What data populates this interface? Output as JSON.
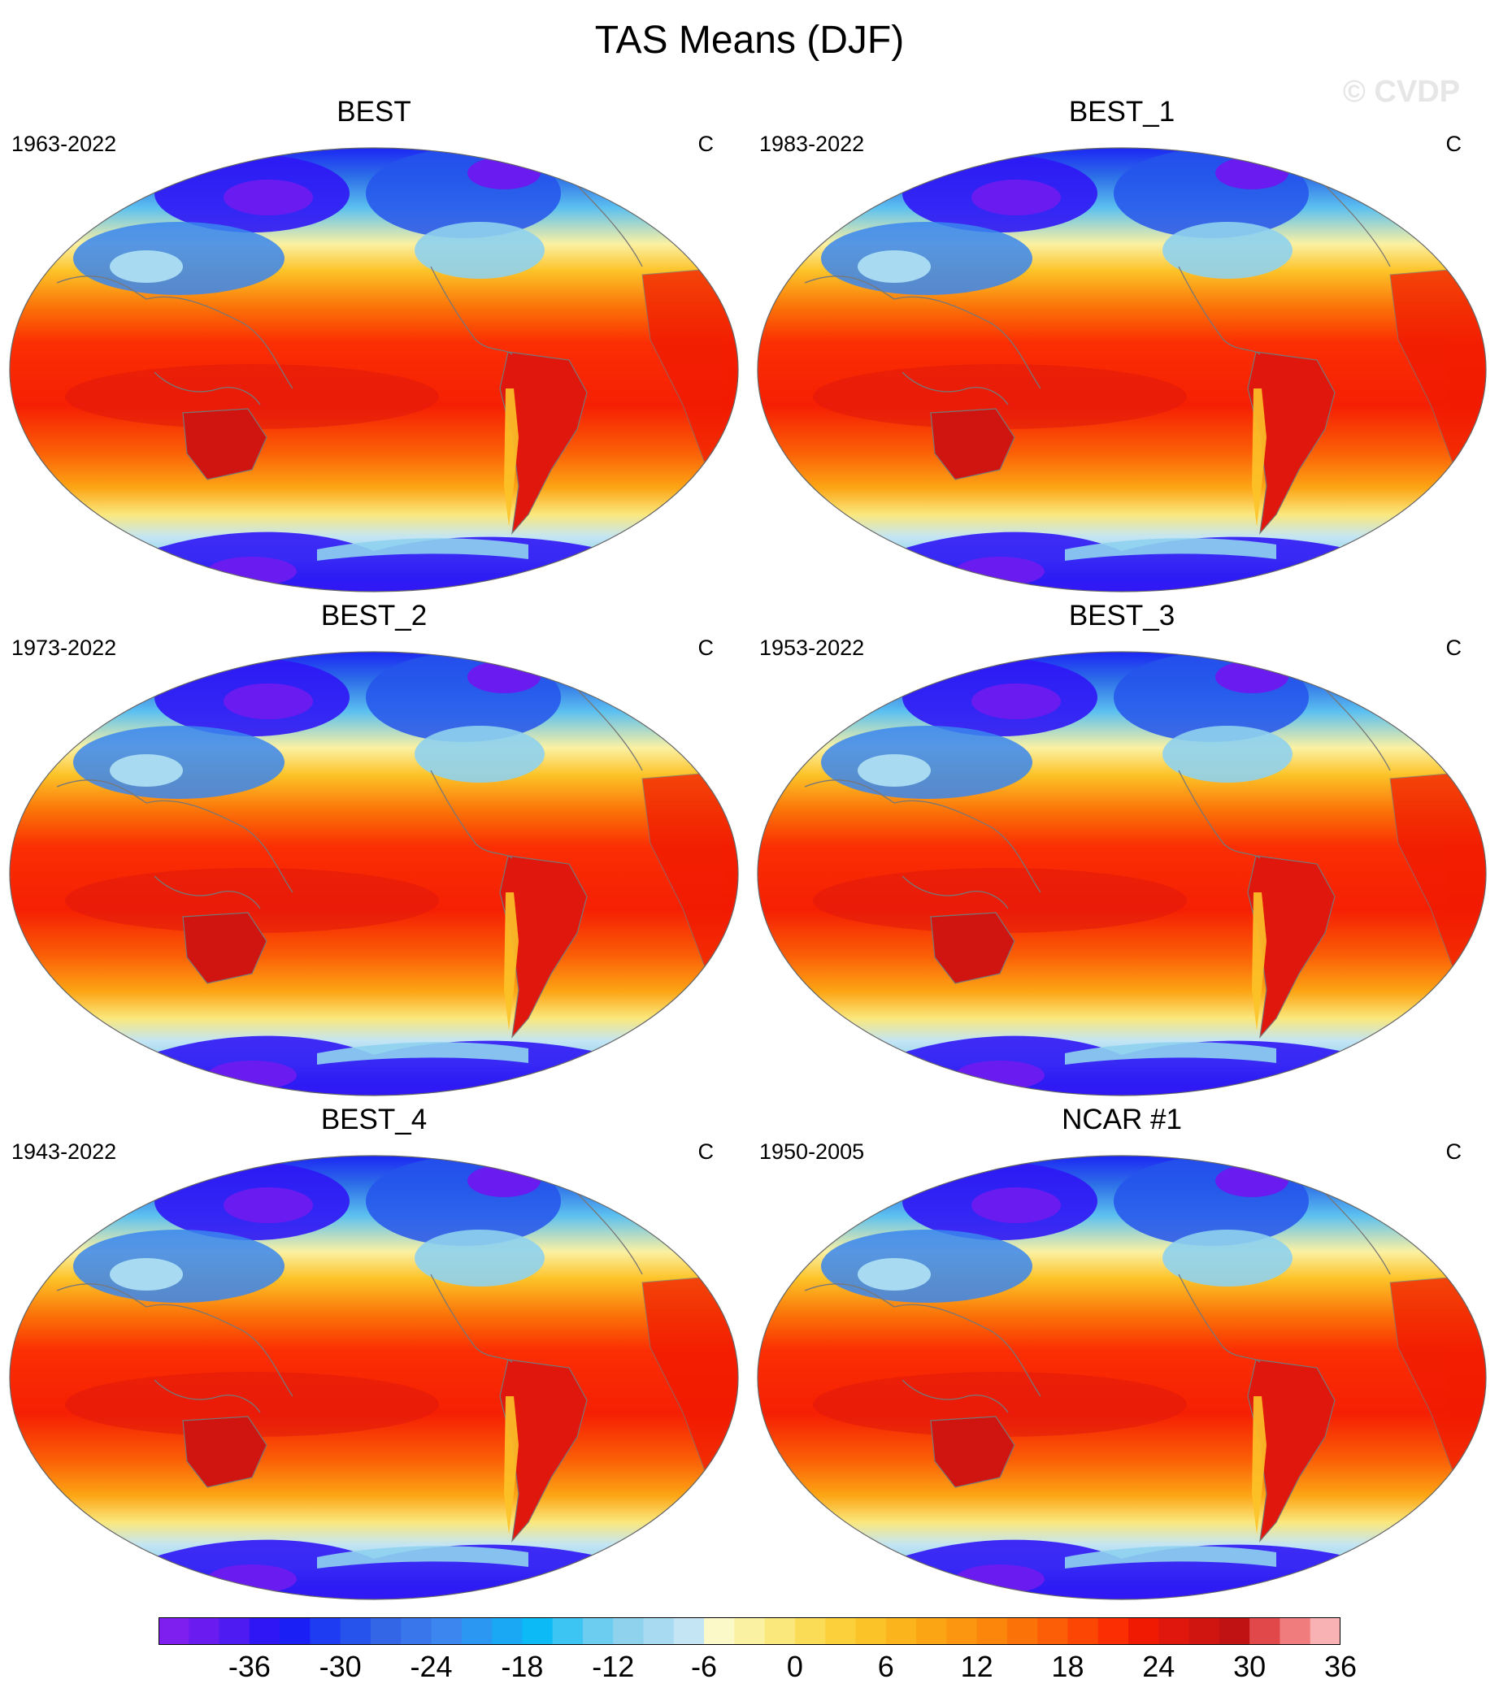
{
  "title": "TAS Means (DJF)",
  "watermark": "© CVDP",
  "panels": [
    {
      "name": "BEST",
      "period": "1963-2022",
      "units": "C"
    },
    {
      "name": "BEST_1",
      "period": "1983-2022",
      "units": "C"
    },
    {
      "name": "BEST_2",
      "period": "1973-2022",
      "units": "C"
    },
    {
      "name": "BEST_3",
      "period": "1953-2022",
      "units": "C"
    },
    {
      "name": "BEST_4",
      "period": "1943-2022",
      "units": "C"
    },
    {
      "name": "NCAR #1",
      "period": "1950-2005",
      "units": "C"
    }
  ],
  "colorbar": {
    "colors": [
      "#7f1fef",
      "#6a1cf0",
      "#4e1bf2",
      "#2f16f5",
      "#1a1ff5",
      "#1e3cf2",
      "#2553eb",
      "#3266e6",
      "#3a76eb",
      "#3b86ef",
      "#2c97f2",
      "#1aa8f5",
      "#0cbaf5",
      "#3cc4f2",
      "#6ccdf0",
      "#8fd2ee",
      "#a8dbf1",
      "#c3e5f4",
      "#fbf9c8",
      "#fbf1a3",
      "#fbe87d",
      "#fbdc56",
      "#fcd03a",
      "#fcc328",
      "#fcb41c",
      "#fca514",
      "#fc950f",
      "#fc850b",
      "#fb7308",
      "#fb5e06",
      "#fb4604",
      "#fb2e03",
      "#f01a02",
      "#e0170d",
      "#d01510",
      "#c01212",
      "#e0484a",
      "#f07c7e",
      "#f8b2b4"
    ],
    "labels": [
      "-36",
      "-30",
      "-24",
      "-18",
      "-12",
      "-6",
      "0",
      "6",
      "12",
      "18",
      "24",
      "30",
      "36"
    ]
  }
}
